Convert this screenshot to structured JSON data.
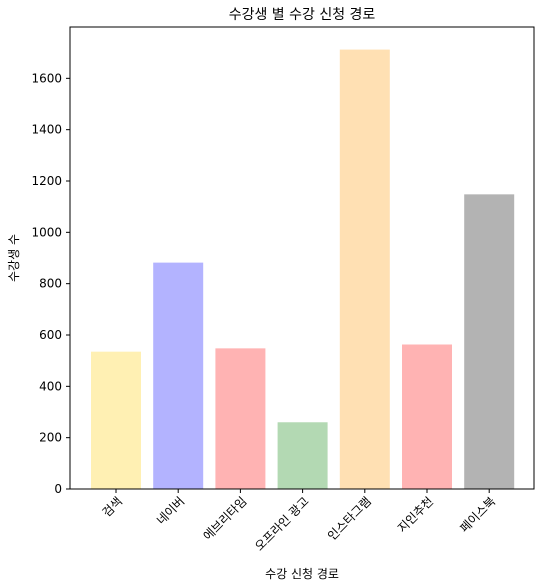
{
  "chart_data": {
    "type": "bar",
    "title": "수강생 별 수강 신청 경로",
    "xlabel": "수강 신청 경로",
    "ylabel": "수강생 수",
    "categories": [
      "검색",
      "네이버",
      "에브리타임",
      "오프라인 광고",
      "인스타그램",
      "지인추천",
      "페이스북"
    ],
    "values": [
      535,
      882,
      548,
      260,
      1712,
      563,
      1148
    ],
    "colors": [
      "#fff0b3",
      "#b3b3ff",
      "#ffb3b3",
      "#b3d9b3",
      "#ffe0b3",
      "#ffb3b3",
      "#b3b3b3"
    ],
    "ylim": [
      0,
      1800
    ],
    "yticks": [
      0,
      200,
      400,
      600,
      800,
      1000,
      1200,
      1400,
      1600
    ],
    "grid": false
  }
}
